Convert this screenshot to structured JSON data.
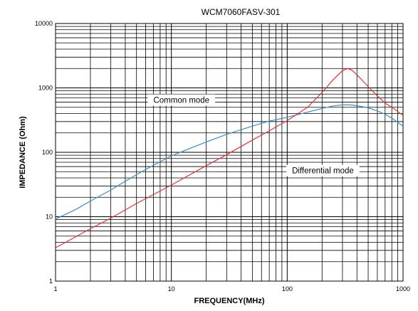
{
  "chart_data": {
    "type": "line",
    "title": "WCM7060FASV-301",
    "xlabel": "FREQUENCY(MHz)",
    "ylabel": "IMPEDANCE (Ohm)",
    "xscale": "log",
    "yscale": "log",
    "xlim": [
      1,
      1000
    ],
    "ylim": [
      1,
      10000
    ],
    "grid": true,
    "x_ticks": [
      "1",
      "10",
      "100",
      "1000"
    ],
    "y_ticks": [
      "1",
      "10",
      "100",
      "1000",
      "10000"
    ],
    "series": [
      {
        "name": "Common mode",
        "color": "#3c8cc8",
        "x": [
          1,
          1.5,
          2,
          3,
          5,
          7,
          10,
          20,
          30,
          50,
          70,
          100,
          150,
          200,
          250,
          300,
          350,
          400,
          500,
          600,
          700,
          800,
          1000
        ],
        "y": [
          9.2,
          13,
          17.5,
          26,
          45,
          63,
          88,
          145,
          190,
          255,
          305,
          350,
          420,
          480,
          525,
          545,
          545,
          530,
          490,
          440,
          390,
          340,
          255
        ]
      },
      {
        "name": "Differential mode",
        "color": "#e63232",
        "x": [
          1,
          2,
          3,
          5,
          10,
          20,
          30,
          50,
          70,
          100,
          150,
          200,
          250,
          300,
          330,
          360,
          400,
          500,
          600,
          700,
          800,
          1000
        ],
        "y": [
          3.3,
          6.5,
          9.5,
          16,
          31,
          62,
          92,
          155,
          215,
          310,
          500,
          850,
          1350,
          1850,
          2000,
          1900,
          1600,
          1050,
          750,
          580,
          500,
          375
        ]
      }
    ],
    "annotations": [
      {
        "text": "Common mode",
        "x": 7,
        "y": 650
      },
      {
        "text": "Differential mode",
        "x": 110,
        "y": 52
      }
    ]
  }
}
